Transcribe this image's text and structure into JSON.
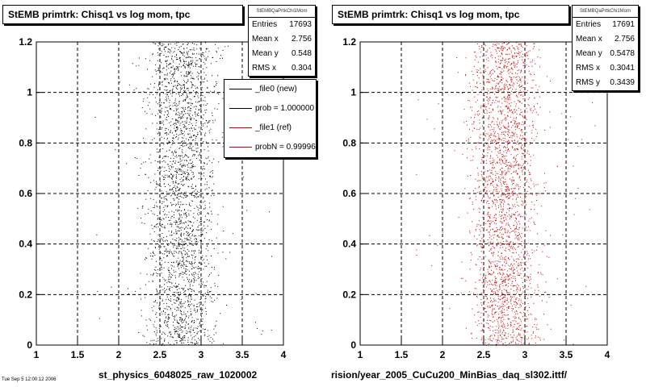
{
  "footer_text": "Tue Sep 5 12:00:12 2006",
  "chart_data": [
    {
      "type": "scatter",
      "title": "StEMB primtrk: Chisq1 vs log mom, tpc",
      "xlabel": "st_physics_6048025_raw_1020002",
      "ylabel": "",
      "xlim": [
        1,
        4
      ],
      "ylim": [
        0,
        1.2
      ],
      "x_ticks": [
        "1",
        "1.5",
        "2",
        "2.5",
        "3",
        "3.5",
        "4"
      ],
      "y_ticks": [
        "0",
        "0.2",
        "0.4",
        "0.6",
        "0.8",
        "1",
        "1.2"
      ],
      "grid": true,
      "marker_color": "#000000",
      "distribution": {
        "x_mean": 2.756,
        "x_rms": 0.304,
        "y_range": [
          0,
          1.2
        ],
        "x_core_range": [
          2.1,
          3.5
        ]
      },
      "stats": {
        "header": "StEMBQaPrtkChi1Mom",
        "rows": [
          {
            "label": "Entries",
            "value": "17693"
          },
          {
            "label": "Mean x",
            "value": "2.756"
          },
          {
            "label": "Mean y",
            "value": "0.548"
          },
          {
            "label": "RMS x",
            "value": "0.304"
          }
        ]
      },
      "legend": {
        "placement": "right",
        "entries": [
          {
            "label": "_file0 (new)",
            "color": "#000000"
          },
          {
            "label": "prob = 1.000000",
            "color": "#000000"
          },
          {
            "label": "_file1 (ref)",
            "color": "#cc0000"
          },
          {
            "label": "probN = 0.999960",
            "color": "#cc0000"
          }
        ]
      }
    },
    {
      "type": "scatter",
      "title": "StEMB primtrk: Chisq1 vs log mom, tpc",
      "xlabel": "rision/year_2005_CuCu200_MinBias_daq_sl302.ittf/",
      "ylabel": "",
      "xlim": [
        1,
        4
      ],
      "ylim": [
        0,
        1.2
      ],
      "x_ticks": [
        "1",
        "1.5",
        "2",
        "2.5",
        "3",
        "3.5",
        "4"
      ],
      "y_ticks": [
        "0",
        "0.2",
        "0.4",
        "0.6",
        "0.8",
        "1",
        "1.2"
      ],
      "grid": true,
      "marker_color": "#cc0000",
      "distribution": {
        "x_mean": 2.756,
        "x_rms": 0.3041,
        "y_range": [
          0,
          1.2
        ],
        "x_core_range": [
          2.1,
          3.5
        ]
      },
      "stats": {
        "header": "StEMBQaPrtkChi1Mom",
        "rows": [
          {
            "label": "Entries",
            "value": "17691"
          },
          {
            "label": "Mean x",
            "value": "2.756"
          },
          {
            "label": "Mean y",
            "value": "0.5478"
          },
          {
            "label": "RMS x",
            "value": "0.3041"
          },
          {
            "label": "RMS y",
            "value": "0.3439"
          }
        ]
      }
    }
  ]
}
